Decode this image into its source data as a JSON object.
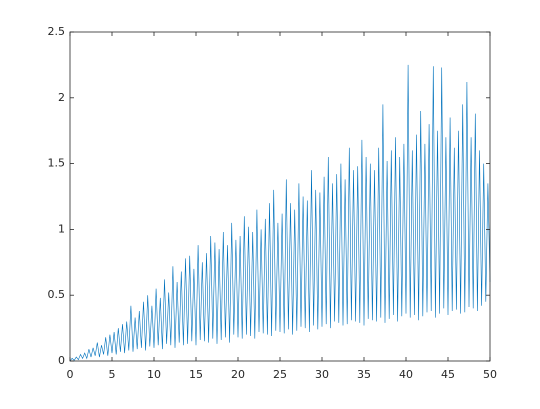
{
  "chart_data": {
    "type": "line",
    "x": [
      0,
      0.25,
      0.5,
      0.75,
      1,
      1.25,
      1.5,
      1.75,
      2,
      2.25,
      2.5,
      2.75,
      3,
      3.25,
      3.5,
      3.75,
      4,
      4.25,
      4.5,
      4.75,
      5,
      5.25,
      5.5,
      5.75,
      6,
      6.25,
      6.5,
      6.75,
      7,
      7.25,
      7.5,
      7.75,
      8,
      8.25,
      8.5,
      8.75,
      9,
      9.25,
      9.5,
      9.75,
      10,
      10.25,
      10.5,
      10.75,
      11,
      11.25,
      11.5,
      11.75,
      12,
      12.25,
      12.5,
      12.75,
      13,
      13.25,
      13.5,
      13.75,
      14,
      14.25,
      14.5,
      14.75,
      15,
      15.25,
      15.5,
      15.75,
      16,
      16.25,
      16.5,
      16.75,
      17,
      17.25,
      17.5,
      17.75,
      18,
      18.25,
      18.5,
      18.75,
      19,
      19.25,
      19.5,
      19.75,
      20,
      20.25,
      20.5,
      20.75,
      21,
      21.25,
      21.5,
      21.75,
      22,
      22.25,
      22.5,
      22.75,
      23,
      23.25,
      23.5,
      23.75,
      24,
      24.25,
      24.5,
      24.75,
      25,
      25.25,
      25.5,
      25.75,
      26,
      26.25,
      26.5,
      26.75,
      27,
      27.25,
      27.5,
      27.75,
      28,
      28.25,
      28.5,
      28.75,
      29,
      29.25,
      29.5,
      29.75,
      30,
      30.25,
      30.5,
      30.75,
      31,
      31.25,
      31.5,
      31.75,
      32,
      32.25,
      32.5,
      32.75,
      33,
      33.25,
      33.5,
      33.75,
      34,
      34.25,
      34.5,
      34.75,
      35,
      35.25,
      35.5,
      35.75,
      36,
      36.25,
      36.5,
      36.75,
      37,
      37.25,
      37.5,
      37.75,
      38,
      38.25,
      38.5,
      38.75,
      39,
      39.25,
      39.5,
      39.75,
      40,
      40.25,
      40.5,
      40.75,
      41,
      41.25,
      41.5,
      41.75,
      42,
      42.25,
      42.5,
      42.75,
      43,
      43.25,
      43.5,
      43.75,
      44,
      44.25,
      44.5,
      44.75,
      45,
      45.25,
      45.5,
      45.75,
      46,
      46.25,
      46.5,
      46.75,
      47,
      47.25,
      47.5,
      47.75,
      48,
      48.25,
      48.5,
      48.75,
      49,
      49.25,
      49.5,
      49.75,
      50
    ],
    "values": [
      0,
      0.02,
      0.005,
      0.03,
      0.01,
      0.05,
      0.02,
      0.06,
      0.02,
      0.09,
      0.03,
      0.1,
      0.04,
      0.14,
      0.03,
      0.12,
      0.05,
      0.18,
      0.04,
      0.2,
      0.06,
      0.22,
      0.05,
      0.25,
      0.07,
      0.28,
      0.06,
      0.3,
      0.08,
      0.42,
      0.07,
      0.33,
      0.09,
      0.38,
      0.1,
      0.45,
      0.08,
      0.5,
      0.11,
      0.42,
      0.1,
      0.55,
      0.12,
      0.48,
      0.09,
      0.62,
      0.13,
      0.52,
      0.12,
      0.72,
      0.1,
      0.6,
      0.14,
      0.68,
      0.12,
      0.78,
      0.13,
      0.8,
      0.15,
      0.7,
      0.12,
      0.88,
      0.16,
      0.75,
      0.15,
      0.82,
      0.14,
      0.95,
      0.17,
      0.9,
      0.13,
      0.85,
      0.16,
      0.98,
      0.18,
      0.88,
      0.14,
      1.05,
      0.2,
      0.92,
      0.18,
      0.95,
      0.17,
      1.1,
      0.2,
      1.02,
      0.19,
      0.98,
      0.17,
      1.15,
      0.22,
      1.0,
      0.21,
      1.08,
      0.2,
      1.2,
      0.19,
      1.3,
      0.23,
      1.05,
      0.22,
      1.12,
      0.21,
      1.38,
      0.24,
      1.2,
      0.2,
      1.15,
      0.23,
      1.35,
      0.26,
      1.25,
      0.25,
      1.22,
      0.22,
      1.45,
      0.27,
      1.3,
      0.24,
      1.28,
      0.26,
      1.4,
      0.28,
      1.55,
      0.25,
      1.35,
      0.3,
      1.42,
      0.29,
      1.5,
      0.27,
      1.38,
      0.28,
      1.62,
      0.31,
      1.45,
      0.3,
      1.48,
      0.29,
      1.68,
      0.27,
      1.55,
      0.32,
      1.5,
      0.31,
      1.45,
      0.3,
      1.62,
      0.33,
      1.95,
      0.29,
      1.52,
      0.32,
      1.6,
      0.35,
      1.7,
      0.3,
      1.55,
      0.34,
      1.65,
      0.36,
      2.25,
      0.33,
      1.6,
      0.35,
      1.72,
      0.31,
      1.9,
      0.34,
      1.65,
      0.37,
      1.8,
      0.38,
      2.24,
      0.33,
      1.75,
      0.36,
      2.23,
      0.4,
      1.7,
      0.35,
      1.85,
      0.38,
      1.62,
      0.39,
      1.75,
      0.36,
      1.95,
      0.37,
      2.12,
      0.41,
      1.7,
      0.4,
      1.88,
      0.38,
      1.6,
      0.42,
      1.5,
      0.45,
      1.35,
      0.6
    ],
    "color": "#0072bd",
    "xlim": [
      0,
      50
    ],
    "xticks": [
      0,
      5,
      10,
      15,
      20,
      25,
      30,
      35,
      40,
      45,
      50
    ],
    "ylim": [
      0,
      2.5
    ],
    "yticks": [
      0,
      0.5,
      1,
      1.5,
      2,
      2.5
    ]
  }
}
